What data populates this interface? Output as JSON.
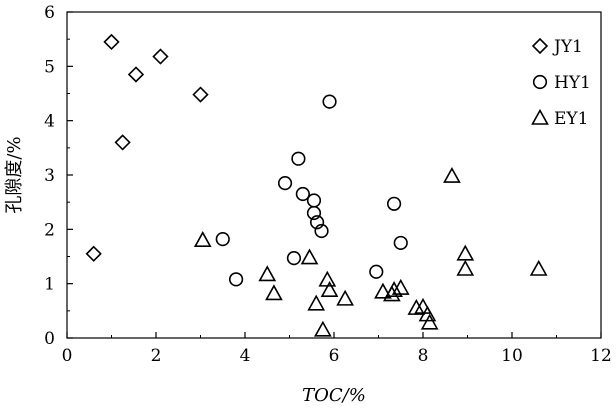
{
  "chart_data": {
    "type": "scatter",
    "xlabel": "TOC/%",
    "ylabel": "孔隙度/%",
    "xlim": [
      0,
      12
    ],
    "ylim": [
      0,
      6
    ],
    "xticks": [
      "0",
      "2",
      "4",
      "6",
      "8",
      "10",
      "12"
    ],
    "yticks": [
      "0",
      "1",
      "2",
      "3",
      "4",
      "5",
      "6"
    ],
    "grid": false,
    "legend_position": "top-right",
    "series": [
      {
        "name": "JY1",
        "marker": "diamond",
        "points": [
          {
            "x": 0.6,
            "y": 1.55
          },
          {
            "x": 1.0,
            "y": 5.45
          },
          {
            "x": 1.25,
            "y": 3.6
          },
          {
            "x": 1.55,
            "y": 4.85
          },
          {
            "x": 2.1,
            "y": 5.18
          },
          {
            "x": 3.0,
            "y": 4.48
          }
        ]
      },
      {
        "name": "HY1",
        "marker": "circle",
        "points": [
          {
            "x": 3.5,
            "y": 1.82
          },
          {
            "x": 3.8,
            "y": 1.08
          },
          {
            "x": 4.9,
            "y": 2.85
          },
          {
            "x": 5.1,
            "y": 1.47
          },
          {
            "x": 5.2,
            "y": 3.3
          },
          {
            "x": 5.3,
            "y": 2.65
          },
          {
            "x": 5.55,
            "y": 2.53
          },
          {
            "x": 5.55,
            "y": 2.3
          },
          {
            "x": 5.62,
            "y": 2.13
          },
          {
            "x": 5.72,
            "y": 1.97
          },
          {
            "x": 5.9,
            "y": 4.35
          },
          {
            "x": 6.95,
            "y": 1.22
          },
          {
            "x": 7.35,
            "y": 2.47
          },
          {
            "x": 7.5,
            "y": 1.75
          }
        ]
      },
      {
        "name": "EY1",
        "marker": "triangle",
        "points": [
          {
            "x": 3.05,
            "y": 1.8
          },
          {
            "x": 4.5,
            "y": 1.17
          },
          {
            "x": 4.65,
            "y": 0.82
          },
          {
            "x": 5.45,
            "y": 1.48
          },
          {
            "x": 5.6,
            "y": 0.63
          },
          {
            "x": 5.75,
            "y": 0.15
          },
          {
            "x": 5.85,
            "y": 1.07
          },
          {
            "x": 5.9,
            "y": 0.88
          },
          {
            "x": 6.25,
            "y": 0.72
          },
          {
            "x": 7.1,
            "y": 0.85
          },
          {
            "x": 7.3,
            "y": 0.8
          },
          {
            "x": 7.35,
            "y": 0.88
          },
          {
            "x": 7.5,
            "y": 0.92
          },
          {
            "x": 7.85,
            "y": 0.55
          },
          {
            "x": 8.0,
            "y": 0.57
          },
          {
            "x": 8.1,
            "y": 0.43
          },
          {
            "x": 8.15,
            "y": 0.28
          },
          {
            "x": 8.65,
            "y": 2.98
          },
          {
            "x": 8.95,
            "y": 1.55
          },
          {
            "x": 8.95,
            "y": 1.27
          },
          {
            "x": 10.6,
            "y": 1.27
          }
        ]
      }
    ]
  }
}
